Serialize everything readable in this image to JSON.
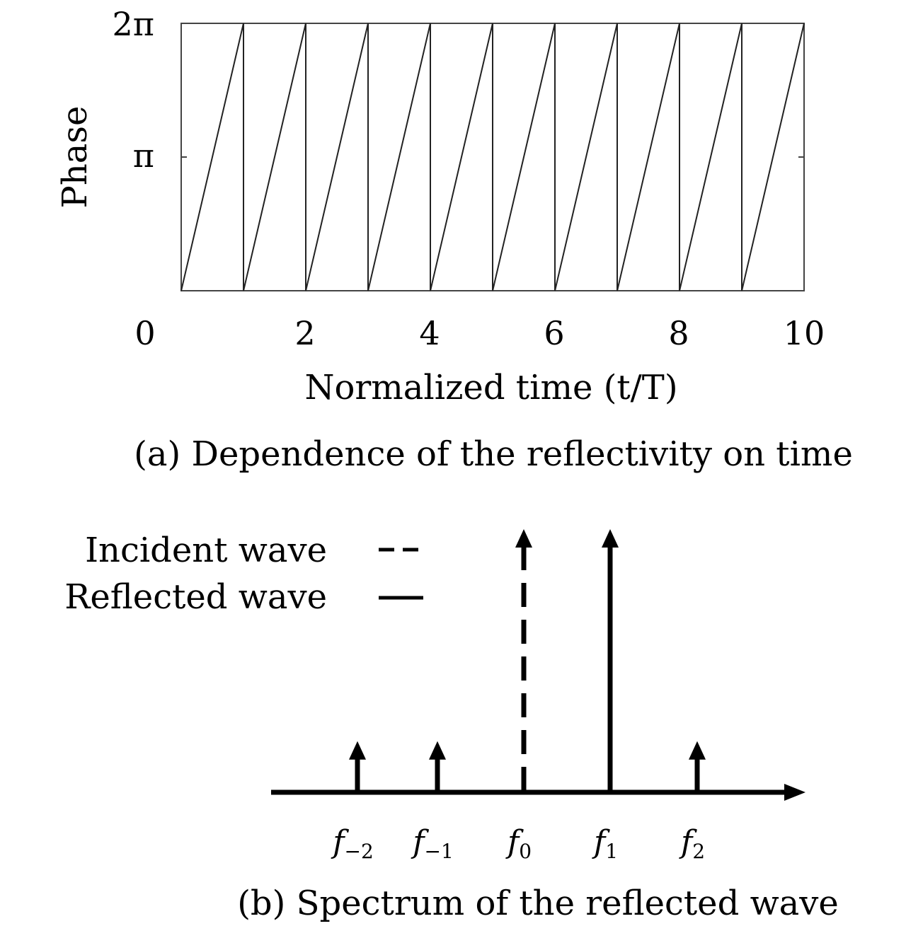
{
  "chart_data": [
    {
      "type": "line",
      "caption": "(a) Dependence of the reflectivity on time",
      "xlabel": "Normalized time (t/T)",
      "ylabel": "Phase",
      "xlim": [
        0,
        10
      ],
      "ylim": [
        0,
        6.2832
      ],
      "x_ticks": [
        {
          "value": 0,
          "label": "0"
        },
        {
          "value": 2,
          "label": "2"
        },
        {
          "value": 4,
          "label": "4"
        },
        {
          "value": 6,
          "label": "6"
        },
        {
          "value": 8,
          "label": "8"
        },
        {
          "value": 10,
          "label": "10"
        }
      ],
      "y_ticks": [
        {
          "value": 3.1416,
          "label": "π"
        },
        {
          "value": 6.2832,
          "label": "2π"
        }
      ],
      "grid": false,
      "series": [
        {
          "style": "solid",
          "description_points": "sawtooth phase ramp 0→2π each period",
          "x": [
            0,
            1,
            1,
            2,
            2,
            3,
            3,
            4,
            4,
            5,
            5,
            6,
            6,
            7,
            7,
            8,
            8,
            9,
            9,
            10
          ],
          "y": [
            0,
            6.2832,
            0,
            6.2832,
            0,
            6.2832,
            0,
            6.2832,
            0,
            6.2832,
            0,
            6.2832,
            0,
            6.2832,
            0,
            6.2832,
            0,
            6.2832,
            0,
            6.2832
          ]
        }
      ]
    },
    {
      "type": "bar",
      "caption": "(b) Spectrum of the reflected wave",
      "categories": [
        "f-2",
        "f-1",
        "f0",
        "f1",
        "f2"
      ],
      "category_labels": [
        {
          "base": "f",
          "sub": "−2"
        },
        {
          "base": "f",
          "sub": "−1"
        },
        {
          "base": "f",
          "sub": "0"
        },
        {
          "base": "f",
          "sub": "1"
        },
        {
          "base": "f",
          "sub": "2"
        }
      ],
      "series": [
        {
          "name": "Incident wave",
          "style": "dashed",
          "values": [
            0,
            0,
            1.0,
            0,
            0
          ]
        },
        {
          "name": "Reflected wave",
          "style": "solid",
          "values": [
            0.19,
            0.19,
            0,
            1.0,
            0.19
          ]
        }
      ],
      "legend": {
        "placement": "top-left",
        "entries": [
          {
            "label": "Incident wave",
            "style": "dashed"
          },
          {
            "label": "Reflected wave",
            "style": "solid"
          }
        ]
      },
      "ylim": [
        0,
        1.0
      ]
    }
  ]
}
